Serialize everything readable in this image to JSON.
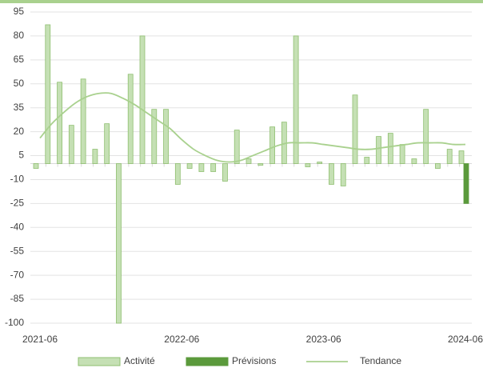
{
  "chart_data": {
    "type": "bar",
    "categories": [
      "2021-06",
      null,
      null,
      null,
      null,
      null,
      null,
      null,
      null,
      null,
      null,
      null,
      "2022-06",
      null,
      null,
      null,
      null,
      null,
      null,
      null,
      null,
      null,
      null,
      null,
      "2023-06",
      null,
      null,
      null,
      null,
      null,
      null,
      null,
      null,
      null,
      null,
      null,
      "2024-06"
    ],
    "series": [
      {
        "name": "Activité",
        "type": "bar",
        "color": "#c5e0b4",
        "values": [
          -3,
          87,
          51,
          24,
          53,
          9,
          25,
          -100,
          56,
          80,
          34,
          34,
          -13,
          -3,
          -5,
          -5,
          -11,
          21,
          3,
          -1,
          23,
          26,
          80,
          -2,
          1,
          -13,
          -14,
          43,
          4,
          17,
          19,
          12,
          3,
          34,
          -3,
          9,
          8
        ]
      },
      {
        "name": "Prévisions",
        "type": "bar",
        "color": "#5b9a3c",
        "values": [
          null,
          null,
          null,
          null,
          null,
          null,
          null,
          null,
          null,
          null,
          null,
          null,
          null,
          null,
          null,
          null,
          null,
          null,
          null,
          null,
          null,
          null,
          null,
          null,
          null,
          null,
          null,
          null,
          null,
          null,
          null,
          null,
          null,
          null,
          null,
          null,
          -25
        ]
      },
      {
        "name": "Tendance",
        "type": "line",
        "color": "#a9d18e",
        "values": [
          16,
          25,
          32,
          38,
          42,
          44,
          44,
          41,
          37,
          32,
          27,
          22,
          15,
          9,
          5,
          2,
          1,
          2,
          5,
          8,
          11,
          13,
          13,
          13,
          12,
          11,
          10,
          9,
          9,
          10,
          11,
          12,
          13,
          13,
          13,
          12,
          12
        ]
      }
    ],
    "ylim": [
      -100,
      95
    ],
    "yticks": [
      95,
      80,
      65,
      50,
      35,
      20,
      5,
      -10,
      -25,
      -40,
      -55,
      -70,
      -85,
      -100
    ],
    "grid": true
  }
}
